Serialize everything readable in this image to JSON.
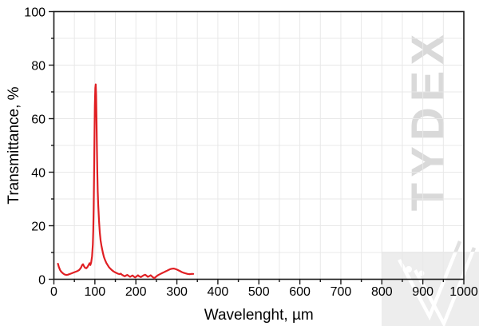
{
  "chart_data": {
    "type": "line",
    "title": "",
    "xlabel": "Wavelenght, µm",
    "ylabel": "Transmittance, %",
    "xlim": [
      0,
      1000
    ],
    "ylim": [
      0,
      100
    ],
    "x_major_ticks": [
      0,
      100,
      200,
      300,
      400,
      500,
      600,
      700,
      800,
      900,
      1000
    ],
    "x_tick_labels": [
      "0",
      "100",
      "200",
      "300",
      "400",
      "500",
      "600",
      "700",
      "800",
      "900",
      "1000"
    ],
    "x_minor_step": 50,
    "y_major_ticks": [
      0,
      20,
      40,
      60,
      80,
      100
    ],
    "y_tick_labels": [
      "0",
      "20",
      "40",
      "60",
      "80",
      "100"
    ],
    "y_minor_step": 10,
    "grid": "on (minor, light gray)",
    "legend": "none",
    "series": [
      {
        "name": "Transmittance",
        "color": "#e01f23",
        "points": [
          [
            10,
            5.8
          ],
          [
            12,
            4.6
          ],
          [
            15,
            3.5
          ],
          [
            18,
            2.8
          ],
          [
            22,
            2.2
          ],
          [
            26,
            1.8
          ],
          [
            30,
            1.6
          ],
          [
            34,
            1.7
          ],
          [
            38,
            1.9
          ],
          [
            43,
            2.2
          ],
          [
            48,
            2.5
          ],
          [
            53,
            2.8
          ],
          [
            58,
            3.1
          ],
          [
            62,
            3.5
          ],
          [
            66,
            4.3
          ],
          [
            69,
            5.3
          ],
          [
            71,
            5.6
          ],
          [
            73,
            5.0
          ],
          [
            76,
            4.3
          ],
          [
            79,
            4.1
          ],
          [
            82,
            4.6
          ],
          [
            85,
            5.4
          ],
          [
            87,
            6.0
          ],
          [
            89,
            5.3
          ],
          [
            91,
            6.3
          ],
          [
            93,
            8.5
          ],
          [
            95,
            13
          ],
          [
            96,
            18
          ],
          [
            97,
            26
          ],
          [
            98,
            38
          ],
          [
            99,
            52
          ],
          [
            100,
            65
          ],
          [
            101,
            71.5
          ],
          [
            102,
            72.8
          ],
          [
            103,
            69
          ],
          [
            104,
            60
          ],
          [
            105,
            49
          ],
          [
            106,
            40
          ],
          [
            107,
            33
          ],
          [
            108,
            28
          ],
          [
            110,
            22
          ],
          [
            112,
            17.5
          ],
          [
            114,
            14.5
          ],
          [
            116,
            12.5
          ],
          [
            118,
            11
          ],
          [
            120,
            9.6
          ],
          [
            122,
            8.4
          ],
          [
            125,
            7.1
          ],
          [
            128,
            6.1
          ],
          [
            131,
            5.3
          ],
          [
            134,
            4.6
          ],
          [
            137,
            4.1
          ],
          [
            140,
            3.6
          ],
          [
            144,
            3.1
          ],
          [
            148,
            2.7
          ],
          [
            152,
            2.4
          ],
          [
            156,
            2.1
          ],
          [
            160,
            1.9
          ],
          [
            163,
            2.1
          ],
          [
            166,
            1.7
          ],
          [
            170,
            1.3
          ],
          [
            173,
            1.1
          ],
          [
            176,
            1.4
          ],
          [
            179,
            1.6
          ],
          [
            183,
            1.2
          ],
          [
            186,
            0.9
          ],
          [
            189,
            1.2
          ],
          [
            192,
            1.4
          ],
          [
            195,
            1.0
          ],
          [
            198,
            0.7
          ],
          [
            202,
            1.1
          ],
          [
            205,
            1.5
          ],
          [
            208,
            1.1
          ],
          [
            212,
            0.8
          ],
          [
            215,
            1.1
          ],
          [
            219,
            1.5
          ],
          [
            223,
            1.7
          ],
          [
            226,
            1.3
          ],
          [
            229,
            0.9
          ],
          [
            233,
            1.2
          ],
          [
            236,
            1.5
          ],
          [
            239,
            1.1
          ],
          [
            242,
            0.7
          ],
          [
            245,
            0.4
          ],
          [
            248,
            0.8
          ],
          [
            252,
            1.3
          ],
          [
            256,
            1.7
          ],
          [
            260,
            2.0
          ],
          [
            264,
            2.3
          ],
          [
            268,
            2.6
          ],
          [
            272,
            2.9
          ],
          [
            276,
            3.2
          ],
          [
            280,
            3.5
          ],
          [
            284,
            3.8
          ],
          [
            288,
            3.95
          ],
          [
            292,
            4.0
          ],
          [
            296,
            3.85
          ],
          [
            300,
            3.6
          ],
          [
            304,
            3.3
          ],
          [
            308,
            3.0
          ],
          [
            312,
            2.7
          ],
          [
            316,
            2.45
          ],
          [
            321,
            2.2
          ],
          [
            326,
            2.0
          ],
          [
            331,
            1.9
          ],
          [
            336,
            2.0
          ],
          [
            340,
            2.0
          ]
        ]
      }
    ]
  },
  "watermark": {
    "text": "TYDEX",
    "text_color": "#d9d9d9",
    "square_color": "#ededed",
    "logo_stroke_outside": "#e0e0e0",
    "logo_stroke_inside": "#ffffff"
  },
  "colors": {
    "background": "#ffffff",
    "frame": "#1a1a1a",
    "grid": "#e8e8e8",
    "text": "#000000"
  }
}
